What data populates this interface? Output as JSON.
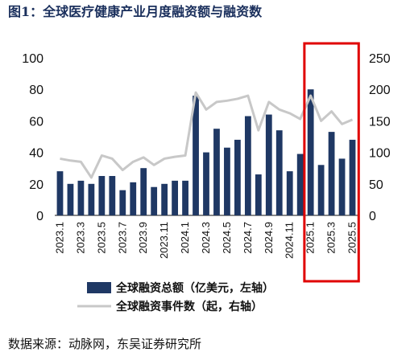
{
  "header": {
    "title": "图1：全球医疗健康产业月度融资额与融资数"
  },
  "chart_data": {
    "type": "bar",
    "title": "",
    "categories": [
      "2023.1",
      "2023.2",
      "2023.3",
      "2023.4",
      "2023.5",
      "2023.6",
      "2023.7",
      "2023.8",
      "2023.9",
      "2023.10",
      "2023.11",
      "2023.12",
      "2024.1",
      "2024.2",
      "2024.3",
      "2024.4",
      "2024.5",
      "2024.6",
      "2024.7",
      "2024.8",
      "2024.9",
      "2024.10",
      "2024.11",
      "2024.12",
      "2025.1",
      "2025.2",
      "2025.3",
      "2025.4",
      "2025.5"
    ],
    "x_tick_labels": [
      "2023.1",
      "2023.3",
      "2023.5",
      "2023.7",
      "2023.9",
      "2023.11",
      "2024.1",
      "2024.3",
      "2024.5",
      "2024.7",
      "2024.9",
      "2024.11",
      "2025.1",
      "2025.3",
      "2025.5"
    ],
    "series": [
      {
        "name": "全球融资总额（亿美元，左轴）",
        "type": "bar",
        "axis": "left",
        "color": "#1f3864",
        "values": [
          28,
          20,
          22,
          20,
          25,
          25,
          16,
          21,
          30,
          18,
          20,
          22,
          22,
          76,
          40,
          55,
          43,
          48,
          63,
          26,
          64,
          54,
          28,
          39,
          80,
          32,
          53,
          36,
          48
        ]
      },
      {
        "name": "全球融资事件数（起，右轴）",
        "type": "line",
        "axis": "right",
        "color": "#c8c8c8",
        "values": [
          90,
          87,
          85,
          60,
          95,
          90,
          72,
          85,
          92,
          80,
          90,
          93,
          95,
          195,
          168,
          180,
          182,
          185,
          190,
          135,
          180,
          168,
          162,
          153,
          190,
          150,
          165,
          145,
          152
        ]
      }
    ],
    "yleft": {
      "lim": [
        0,
        100
      ],
      "ticks": [
        "0",
        "20",
        "40",
        "60",
        "80",
        "100"
      ]
    },
    "yright": {
      "lim": [
        0,
        250
      ],
      "ticks": [
        "0",
        "50",
        "100",
        "150",
        "200",
        "250"
      ]
    },
    "legend_position": "bottom",
    "highlight": {
      "from": "2024.12",
      "to": "2025.5",
      "color": "#e00000"
    },
    "grid": false
  },
  "footer": {
    "source": "数据来源：动脉网，东吴证券研究所"
  }
}
